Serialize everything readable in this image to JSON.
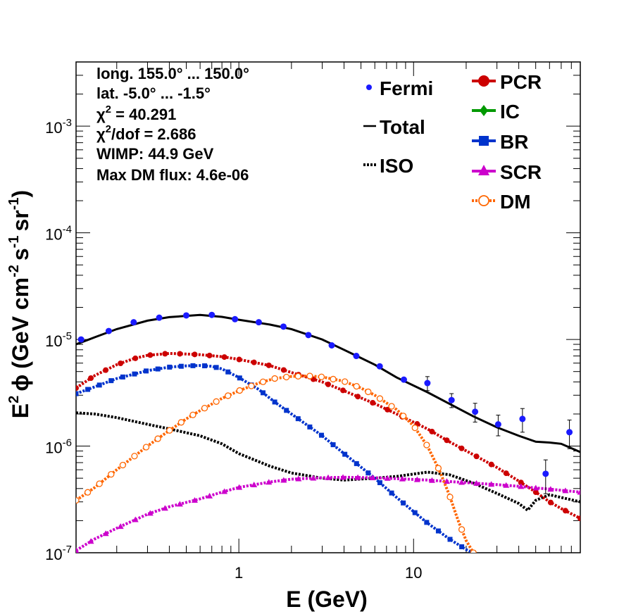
{
  "chart_data": {
    "type": "line",
    "xlabel": "E (GeV)",
    "ylabel_parts": {
      "E": "E",
      "sup2": "2",
      "phi": "ϕ",
      "unit_open": "(GeV cm",
      "m2": "-2",
      "s": "s",
      "m1a": "-1",
      "sr": "sr",
      "m1b": "-1",
      "close": ")"
    },
    "x_scale": "log",
    "y_scale": "log",
    "xlim": [
      0.117,
      90
    ],
    "ylim": [
      1e-07,
      0.004
    ],
    "x_tick_labels": [
      {
        "value": 1,
        "label": "1"
      },
      {
        "value": 10,
        "label": "10"
      }
    ],
    "y_tick_labels": [
      {
        "value": 1e-07,
        "base": "10",
        "exp": "-7"
      },
      {
        "value": 1e-06,
        "base": "10",
        "exp": "-6"
      },
      {
        "value": 1e-05,
        "base": "10",
        "exp": "-5"
      },
      {
        "value": 0.0001,
        "base": "10",
        "exp": "-4"
      },
      {
        "value": 0.001,
        "base": "10",
        "exp": "-3"
      }
    ],
    "info": {
      "long": "long. 155.0° ... 150.0°",
      "lat": "lat. -5.0° ... -1.5°",
      "chi2_prefix": "χ",
      "chi2_sup": "2",
      "chi2_suffix": " = 40.291",
      "chi2dof_prefix": "χ",
      "chi2dof_sup": "2",
      "chi2dof_suffix": "/dof = 2.686",
      "wimp": "WIMP: 44.9 GeV",
      "maxdm": "Max DM flux: 4.6e-06"
    },
    "legend": {
      "fermi": "Fermi",
      "total": "Total",
      "iso": "ISO",
      "pcr": "PCR",
      "ic": "IC",
      "br": "BR",
      "scr": "SCR",
      "dm": "DM"
    },
    "colors": {
      "fermi": "#1a1aff",
      "total": "#000000",
      "iso": "#000000",
      "pcr": "#cc0000",
      "ic": "#009900",
      "br": "#0033cc",
      "scr": "#cc00cc",
      "dm": "#ff6600"
    },
    "fermi_points": [
      {
        "x": 0.125,
        "y": 1e-05,
        "err": 0
      },
      {
        "x": 0.18,
        "y": 1.2e-05,
        "err": 0
      },
      {
        "x": 0.25,
        "y": 1.45e-05,
        "err": 0
      },
      {
        "x": 0.35,
        "y": 1.6e-05,
        "err": 0
      },
      {
        "x": 0.5,
        "y": 1.68e-05,
        "err": 0
      },
      {
        "x": 0.7,
        "y": 1.7e-05,
        "err": 0
      },
      {
        "x": 0.95,
        "y": 1.55e-05,
        "err": 0
      },
      {
        "x": 1.3,
        "y": 1.45e-05,
        "err": 0
      },
      {
        "x": 1.8,
        "y": 1.32e-05,
        "err": 0
      },
      {
        "x": 2.5,
        "y": 1.1e-05,
        "err": 0
      },
      {
        "x": 3.4,
        "y": 8.8e-06,
        "err": 0
      },
      {
        "x": 4.7,
        "y": 7e-06,
        "err": 0
      },
      {
        "x": 6.4,
        "y": 5.6e-06,
        "err": 0
      },
      {
        "x": 8.8,
        "y": 4.2e-06,
        "err": 0
      },
      {
        "x": 12,
        "y": 3.9e-06,
        "err": 0.15
      },
      {
        "x": 16.5,
        "y": 2.7e-06,
        "err": 0.15
      },
      {
        "x": 22.5,
        "y": 2.1e-06,
        "err": 0.2
      },
      {
        "x": 30.5,
        "y": 1.6e-06,
        "err": 0.22
      },
      {
        "x": 42,
        "y": 1.8e-06,
        "err": 0.25
      },
      {
        "x": 57,
        "y": 5.5e-07,
        "err": 0.35
      },
      {
        "x": 78,
        "y": 1.35e-06,
        "err": 0.3
      }
    ],
    "series": [
      {
        "key": "total",
        "style": "solid",
        "x": [
          0.117,
          0.15,
          0.2,
          0.3,
          0.4,
          0.6,
          0.8,
          1.0,
          1.5,
          2,
          3,
          4,
          6,
          8,
          12,
          16,
          22,
          30,
          40,
          50,
          60,
          70,
          90
        ],
        "y": [
          9e-06,
          1.05e-05,
          1.25e-05,
          1.5e-05,
          1.62e-05,
          1.7e-05,
          1.63e-05,
          1.53e-05,
          1.38e-05,
          1.25e-05,
          1e-05,
          8e-06,
          5.8e-06,
          4.4e-06,
          3.2e-06,
          2.5e-06,
          1.9e-06,
          1.5e-06,
          1.25e-06,
          1.1e-06,
          1.08e-06,
          1.05e-06,
          8.8e-07
        ]
      },
      {
        "key": "iso",
        "style": "dotted",
        "x": [
          0.117,
          0.15,
          0.2,
          0.3,
          0.4,
          0.6,
          0.8,
          1.0,
          1.5,
          2,
          3,
          4,
          6,
          8,
          12,
          16,
          22,
          30,
          40,
          45,
          50,
          60,
          70,
          90
        ],
        "y": [
          2.05e-06,
          2e-06,
          1.85e-06,
          1.6e-06,
          1.45e-06,
          1.25e-06,
          1.05e-06,
          8.5e-07,
          6.5e-07,
          5.6e-07,
          5e-07,
          4.8e-07,
          5e-07,
          5.2e-07,
          5.7e-07,
          5.4e-07,
          4.5e-07,
          3.6e-07,
          2.9e-07,
          2.5e-07,
          3.1e-07,
          3.5e-07,
          3.3e-07,
          3e-07
        ]
      },
      {
        "key": "pcr",
        "style": "dotted",
        "marker": "circle",
        "x": [
          0.117,
          0.15,
          0.2,
          0.25,
          0.3,
          0.4,
          0.5,
          0.6,
          0.8,
          1.0,
          1.5,
          2,
          3,
          4,
          6,
          8,
          12,
          16,
          22,
          30,
          40,
          50,
          60,
          70,
          90
        ],
        "y": [
          3.5e-06,
          4.6e-06,
          5.8e-06,
          6.6e-06,
          7.1e-06,
          7.4e-06,
          7.3e-06,
          7.2e-06,
          6.9e-06,
          6.5e-06,
          5.7e-06,
          4.9e-06,
          4e-06,
          3.3e-06,
          2.5e-06,
          2e-06,
          1.45e-06,
          1.1e-06,
          8.3e-07,
          6.3e-07,
          4.7e-07,
          3.7e-07,
          3e-07,
          2.6e-07,
          2.1e-07
        ]
      },
      {
        "key": "br",
        "style": "dotted",
        "marker": "square",
        "x": [
          0.117,
          0.15,
          0.2,
          0.3,
          0.4,
          0.5,
          0.6,
          0.7,
          0.8,
          1.0,
          1.3,
          1.6,
          2,
          3,
          4,
          6,
          8,
          12,
          16,
          20,
          22
        ],
        "y": [
          3.1e-06,
          3.6e-06,
          4.3e-06,
          5.1e-06,
          5.5e-06,
          5.65e-06,
          5.7e-06,
          5.6e-06,
          5.3e-06,
          4.4e-06,
          3.4e-06,
          2.6e-06,
          2e-06,
          1.25e-06,
          8.5e-07,
          5e-07,
          3.3e-07,
          1.9e-07,
          1.35e-07,
          1.07e-07,
          1e-07
        ]
      },
      {
        "key": "scr",
        "style": "dotted",
        "marker": "triangle",
        "x": [
          0.117,
          0.15,
          0.2,
          0.3,
          0.4,
          0.6,
          0.8,
          1.0,
          1.5,
          2,
          3,
          4,
          6,
          8,
          12,
          16,
          22,
          30,
          40,
          50,
          60,
          70,
          90
        ],
        "y": [
          1.05e-07,
          1.35e-07,
          1.7e-07,
          2.3e-07,
          2.7e-07,
          3.2e-07,
          3.7e-07,
          4.1e-07,
          4.6e-07,
          4.9e-07,
          5.05e-07,
          5.1e-07,
          5.05e-07,
          4.95e-07,
          4.8e-07,
          4.65e-07,
          4.5e-07,
          4.35e-07,
          4.2e-07,
          4.05e-07,
          3.95e-07,
          3.85e-07,
          3.7e-07
        ]
      },
      {
        "key": "dm",
        "style": "dotted",
        "marker": "open-circle",
        "x": [
          0.117,
          0.15,
          0.2,
          0.3,
          0.4,
          0.5,
          0.6,
          0.8,
          1.0,
          1.3,
          1.6,
          2,
          2.5,
          3,
          4,
          5,
          6,
          8,
          10,
          12,
          14,
          16,
          18,
          20,
          22
        ],
        "y": [
          3.1e-07,
          4.1e-07,
          6e-07,
          1e-06,
          1.4e-06,
          1.8e-06,
          2.15e-06,
          2.8e-06,
          3.3e-06,
          3.9e-06,
          4.3e-06,
          4.5e-06,
          4.55e-06,
          4.45e-06,
          4.05e-06,
          3.5e-06,
          3e-06,
          2.2e-06,
          1.55e-06,
          1e-06,
          6e-07,
          3.5e-07,
          2e-07,
          1.3e-07,
          1e-07
        ]
      }
    ]
  }
}
